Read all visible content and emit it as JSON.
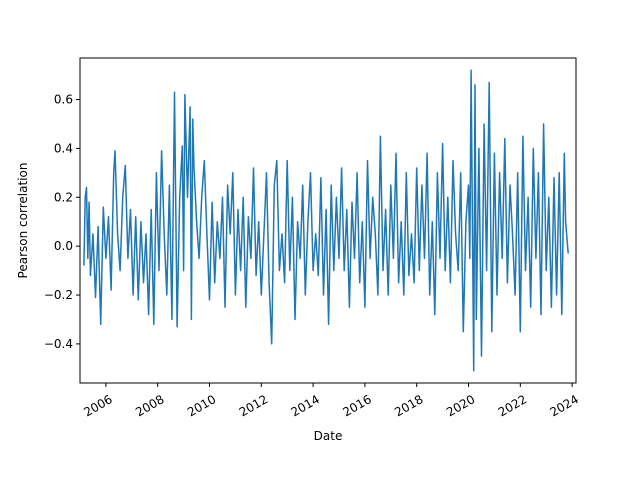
{
  "chart_data": {
    "type": "line",
    "title": "",
    "xlabel": "Date",
    "ylabel": "Pearson correlation",
    "xlim": [
      2005.0,
      2024.15
    ],
    "ylim": [
      -0.56,
      0.77
    ],
    "x_ticks": [
      2006,
      2008,
      2010,
      2012,
      2014,
      2016,
      2018,
      2020,
      2022,
      2024
    ],
    "x_tick_labels": [
      "2006",
      "2008",
      "2010",
      "2012",
      "2014",
      "2016",
      "2018",
      "2020",
      "2022",
      "2024"
    ],
    "y_ticks": [
      -0.4,
      -0.2,
      0.0,
      0.2,
      0.4,
      0.6
    ],
    "y_tick_labels": [
      "−0.4",
      "−0.2",
      "0.0",
      "0.2",
      "0.4",
      "0.6"
    ],
    "grid": false,
    "series": [
      {
        "color": "#1f77b4",
        "x": [
          2005.15,
          2005.2,
          2005.25,
          2005.3,
          2005.35,
          2005.4,
          2005.5,
          2005.6,
          2005.7,
          2005.8,
          2005.9,
          2006.0,
          2006.1,
          2006.2,
          2006.3,
          2006.35,
          2006.45,
          2006.55,
          2006.65,
          2006.75,
          2006.85,
          2006.95,
          2007.05,
          2007.15,
          2007.25,
          2007.35,
          2007.45,
          2007.55,
          2007.65,
          2007.75,
          2007.85,
          2007.95,
          2008.05,
          2008.15,
          2008.25,
          2008.35,
          2008.45,
          2008.55,
          2008.65,
          2008.75,
          2008.85,
          2008.95,
          2009.0,
          2009.05,
          2009.15,
          2009.25,
          2009.3,
          2009.35,
          2009.4,
          2009.5,
          2009.6,
          2009.7,
          2009.8,
          2009.9,
          2010.0,
          2010.1,
          2010.2,
          2010.3,
          2010.4,
          2010.5,
          2010.6,
          2010.7,
          2010.8,
          2010.9,
          2011.0,
          2011.1,
          2011.2,
          2011.3,
          2011.4,
          2011.5,
          2011.6,
          2011.7,
          2011.8,
          2011.9,
          2012.0,
          2012.1,
          2012.2,
          2012.3,
          2012.4,
          2012.5,
          2012.6,
          2012.7,
          2012.8,
          2012.9,
          2013.0,
          2013.1,
          2013.2,
          2013.3,
          2013.4,
          2013.5,
          2013.6,
          2013.7,
          2013.8,
          2013.9,
          2014.0,
          2014.1,
          2014.2,
          2014.3,
          2014.4,
          2014.5,
          2014.6,
          2014.7,
          2014.8,
          2014.9,
          2015.0,
          2015.1,
          2015.2,
          2015.3,
          2015.4,
          2015.5,
          2015.6,
          2015.7,
          2015.8,
          2015.9,
          2016.0,
          2016.1,
          2016.2,
          2016.3,
          2016.4,
          2016.5,
          2016.6,
          2016.7,
          2016.8,
          2016.9,
          2017.0,
          2017.1,
          2017.2,
          2017.3,
          2017.4,
          2017.5,
          2017.6,
          2017.7,
          2017.8,
          2017.9,
          2018.0,
          2018.1,
          2018.2,
          2018.3,
          2018.4,
          2018.5,
          2018.6,
          2018.7,
          2018.8,
          2018.9,
          2019.0,
          2019.1,
          2019.2,
          2019.3,
          2019.4,
          2019.5,
          2019.6,
          2019.7,
          2019.8,
          2019.9,
          2020.0,
          2020.05,
          2020.1,
          2020.2,
          2020.25,
          2020.3,
          2020.4,
          2020.5,
          2020.6,
          2020.7,
          2020.8,
          2020.9,
          2021.0,
          2021.1,
          2021.2,
          2021.3,
          2021.4,
          2021.5,
          2021.6,
          2021.7,
          2021.8,
          2021.9,
          2022.0,
          2022.1,
          2022.2,
          2022.3,
          2022.4,
          2022.5,
          2022.6,
          2022.7,
          2022.8,
          2022.9,
          2023.0,
          2023.1,
          2023.2,
          2023.3,
          2023.4,
          2023.5,
          2023.6,
          2023.7,
          2023.75,
          2023.85
        ],
        "y": [
          -0.08,
          0.2,
          0.24,
          -0.05,
          0.18,
          -0.12,
          0.05,
          -0.21,
          0.08,
          -0.32,
          0.16,
          -0.05,
          0.12,
          -0.18,
          0.3,
          0.39,
          0.05,
          -0.1,
          0.2,
          0.33,
          -0.05,
          0.15,
          -0.2,
          0.12,
          -0.22,
          0.1,
          -0.15,
          0.05,
          -0.28,
          0.15,
          -0.32,
          0.3,
          -0.1,
          0.39,
          0.05,
          -0.2,
          0.25,
          -0.3,
          0.63,
          -0.33,
          0.2,
          0.41,
          -0.1,
          0.62,
          0.2,
          0.57,
          -0.3,
          0.52,
          0.32,
          0.1,
          -0.05,
          0.2,
          0.35,
          0.05,
          -0.22,
          0.18,
          -0.15,
          0.1,
          -0.05,
          0.2,
          -0.25,
          0.25,
          0.05,
          0.3,
          -0.2,
          0.15,
          -0.1,
          0.2,
          -0.25,
          0.12,
          -0.05,
          0.32,
          -0.12,
          0.1,
          -0.2,
          0.05,
          0.3,
          -0.15,
          -0.4,
          0.25,
          0.35,
          -0.1,
          0.05,
          -0.15,
          0.35,
          -0.1,
          0.2,
          -0.3,
          0.1,
          -0.05,
          0.25,
          -0.2,
          0.1,
          0.3,
          -0.1,
          0.05,
          -0.12,
          0.28,
          -0.2,
          0.15,
          -0.32,
          0.25,
          -0.1,
          0.2,
          -0.05,
          0.32,
          -0.1,
          0.15,
          -0.25,
          0.18,
          -0.05,
          0.3,
          -0.15,
          0.1,
          -0.25,
          0.35,
          -0.05,
          0.2,
          0.05,
          -0.2,
          0.45,
          -0.1,
          0.15,
          -0.2,
          0.25,
          -0.05,
          0.38,
          -0.15,
          0.1,
          -0.2,
          0.3,
          -0.12,
          0.05,
          -0.15,
          0.32,
          -0.1,
          0.25,
          -0.05,
          0.38,
          -0.2,
          0.1,
          -0.28,
          0.3,
          -0.05,
          0.42,
          -0.1,
          0.2,
          -0.15,
          0.35,
          0.05,
          -0.1,
          0.3,
          -0.35,
          0.1,
          0.25,
          -0.05,
          0.72,
          -0.51,
          0.66,
          -0.3,
          0.4,
          -0.45,
          0.5,
          -0.1,
          0.67,
          -0.35,
          0.38,
          -0.2,
          0.3,
          -0.05,
          0.44,
          -0.15,
          0.25,
          0.05,
          -0.2,
          0.3,
          -0.35,
          0.45,
          -0.1,
          0.2,
          -0.25,
          0.4,
          -0.05,
          0.3,
          -0.28,
          0.5,
          -0.1,
          0.2,
          -0.25,
          0.28,
          -0.2,
          0.3,
          -0.28,
          0.38,
          0.1,
          -0.03
        ]
      }
    ]
  }
}
